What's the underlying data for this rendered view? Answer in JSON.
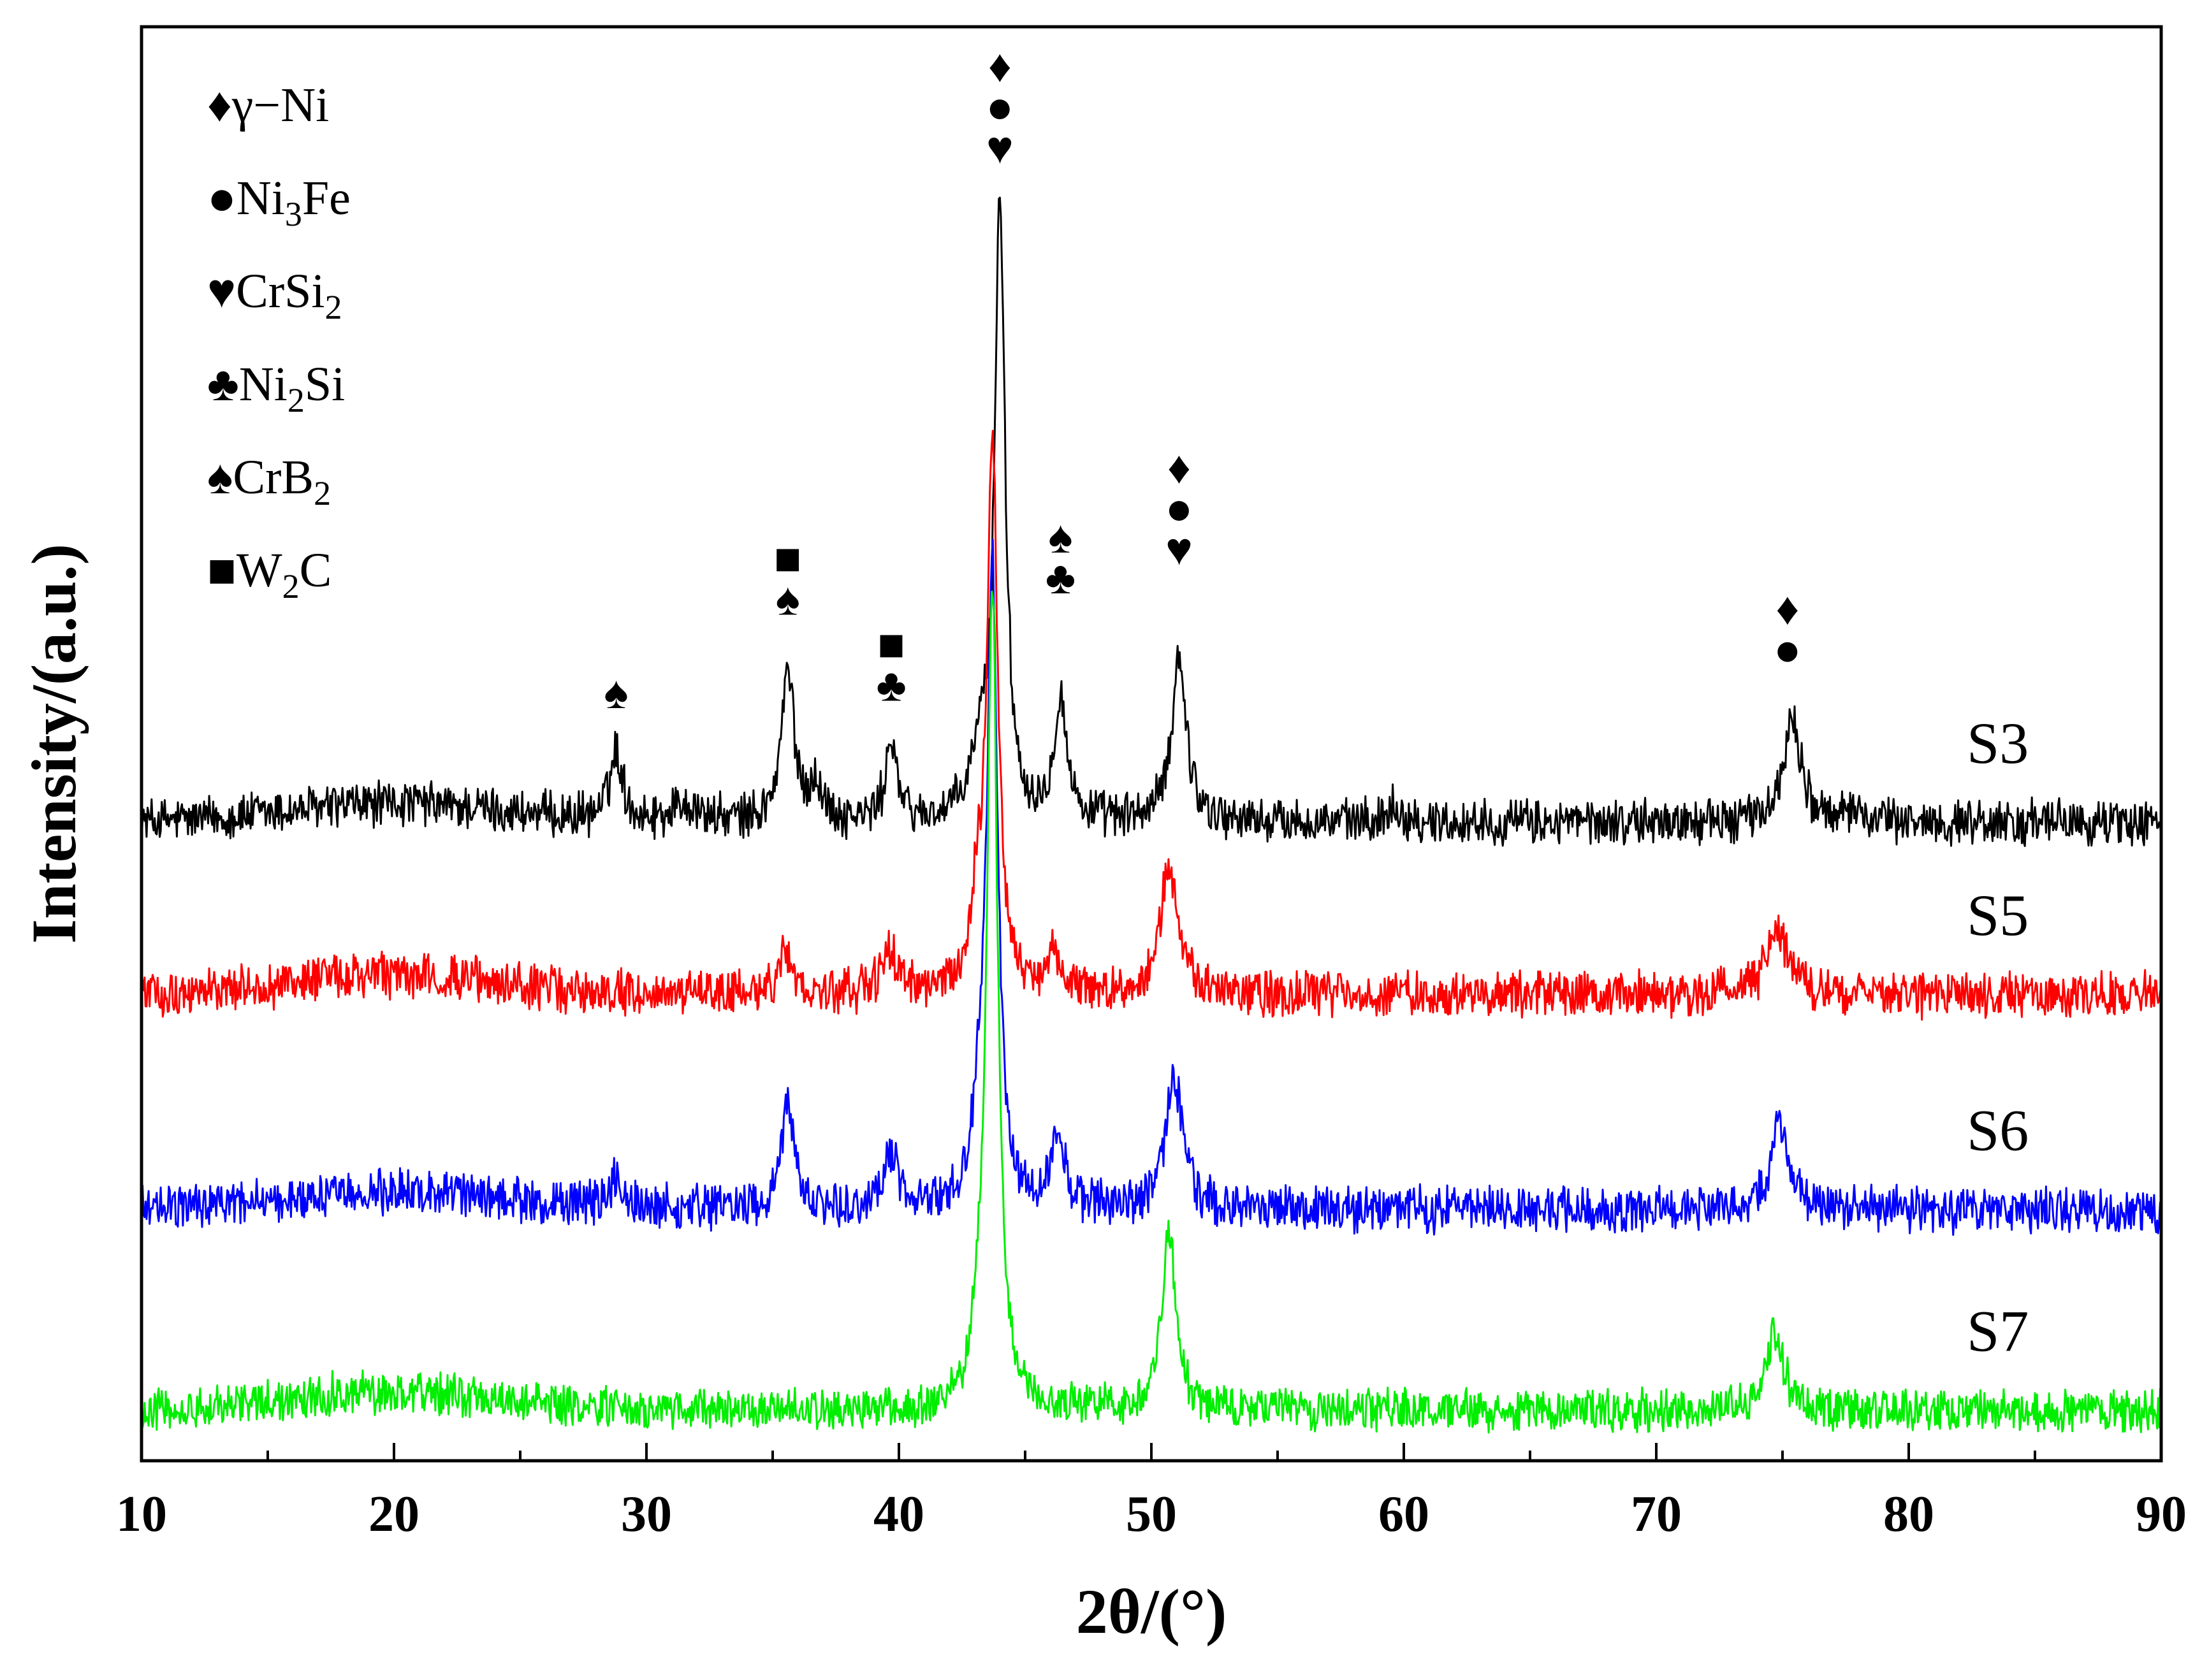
{
  "chart_data": {
    "type": "line",
    "title": "",
    "xlabel": "2θ/(°)",
    "ylabel": "Intensity/(a.u.)",
    "xlim": [
      10,
      90
    ],
    "xticks": [
      10,
      20,
      30,
      40,
      50,
      60,
      70,
      80,
      90
    ],
    "ylim": [
      0,
      1
    ],
    "grid": false,
    "legend": {
      "placement": "top-left",
      "entries": [
        {
          "symbol": "♦",
          "text": "γ−Ni",
          "sub": "",
          "tail": ""
        },
        {
          "symbol": "●",
          "text": "Ni",
          "sub": "3",
          "tail": "Fe"
        },
        {
          "symbol": "♥",
          "text": "CrSi",
          "sub": "2",
          "tail": ""
        },
        {
          "symbol": "♣",
          "text": "Ni",
          "sub": "2",
          "tail": "Si"
        },
        {
          "symbol": "♠",
          "text": "CrB",
          "sub": "2",
          "tail": ""
        },
        {
          "symbol": "■",
          "text": "W",
          "sub": "2",
          "tail": "C"
        }
      ]
    },
    "series": [
      {
        "name": "S3",
        "color": "#000000",
        "baseline": 0.445,
        "noise": 0.014,
        "peaks": [
          [
            28.8,
            0.048,
            0.3
          ],
          [
            31.5,
            0.012,
            0.6
          ],
          [
            35.6,
            0.105,
            0.3
          ],
          [
            36.7,
            0.025,
            0.3
          ],
          [
            39.7,
            0.058,
            0.25
          ],
          [
            43.2,
            0.04,
            0.4
          ],
          [
            44.0,
            0.43,
            0.25
          ],
          [
            46.4,
            0.085,
            0.3
          ],
          [
            51.1,
            0.115,
            0.35
          ],
          [
            59.6,
            0.012,
            0.3
          ],
          [
            75.4,
            0.075,
            0.4
          ],
          [
            78.0,
            0.01,
            0.3
          ]
        ]
      },
      {
        "name": "S5",
        "color": "#ff0000",
        "baseline": 0.325,
        "noise": 0.014,
        "peaks": [
          [
            35.5,
            0.025,
            0.4
          ],
          [
            39.6,
            0.03,
            0.35
          ],
          [
            43.1,
            0.05,
            0.3
          ],
          [
            43.7,
            0.39,
            0.25
          ],
          [
            46.1,
            0.025,
            0.4
          ],
          [
            50.7,
            0.085,
            0.45
          ],
          [
            74.8,
            0.042,
            0.5
          ]
        ]
      },
      {
        "name": "S6",
        "color": "#0000ff",
        "baseline": 0.175,
        "noise": 0.014,
        "peaks": [
          [
            28.8,
            0.02,
            0.25
          ],
          [
            35.6,
            0.075,
            0.3
          ],
          [
            39.7,
            0.035,
            0.35
          ],
          [
            43.2,
            0.05,
            0.3
          ],
          [
            43.7,
            0.45,
            0.25
          ],
          [
            46.3,
            0.055,
            0.3
          ],
          [
            50.9,
            0.09,
            0.4
          ],
          [
            74.9,
            0.058,
            0.45
          ]
        ]
      },
      {
        "name": "S7",
        "color": "#00ee00",
        "baseline": 0.035,
        "noise": 0.013,
        "peaks": [
          [
            43.2,
            0.04,
            0.3
          ],
          [
            43.7,
            0.57,
            0.25
          ],
          [
            50.7,
            0.12,
            0.35
          ],
          [
            74.7,
            0.058,
            0.4
          ]
        ]
      }
    ],
    "annotations": [
      {
        "x": 28.8,
        "y": 0.525,
        "symbols": [
          "♠"
        ]
      },
      {
        "x": 35.6,
        "y": 0.59,
        "symbols": [
          "■",
          "♠"
        ]
      },
      {
        "x": 39.7,
        "y": 0.53,
        "symbols": [
          "■",
          "♣"
        ]
      },
      {
        "x": 44.0,
        "y": 0.905,
        "symbols": [
          "♦",
          "●",
          "♥"
        ]
      },
      {
        "x": 46.4,
        "y": 0.605,
        "symbols": [
          "♠",
          "♣"
        ]
      },
      {
        "x": 51.1,
        "y": 0.625,
        "symbols": [
          "♦",
          "●",
          "♥"
        ]
      },
      {
        "x": 75.2,
        "y": 0.555,
        "symbols": [
          "♦",
          "●"
        ]
      }
    ]
  }
}
